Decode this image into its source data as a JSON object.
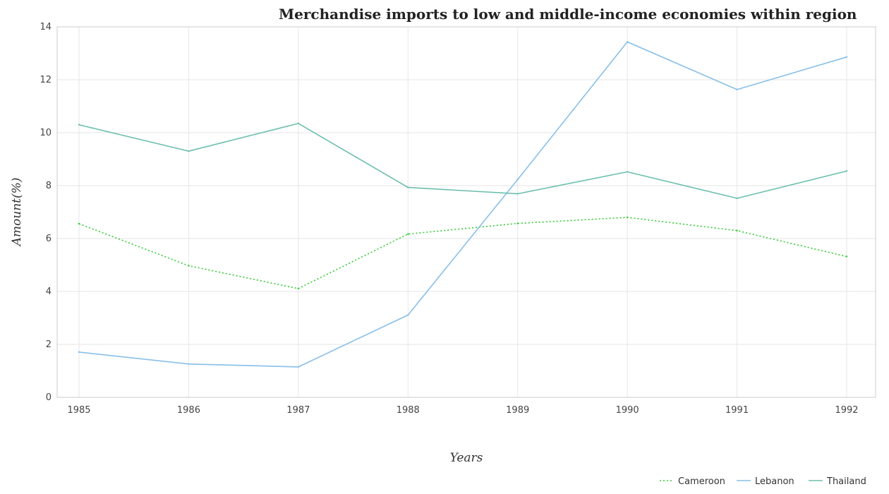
{
  "chart_data": {
    "type": "line",
    "title": "Merchandise imports to low and middle-income economies within region",
    "xlabel": "Years",
    "ylabel": "Amount(%)",
    "categories": [
      "1985",
      "1986",
      "1987",
      "1988",
      "1989",
      "1990",
      "1991",
      "1992"
    ],
    "ylim": [
      0,
      14
    ],
    "yticks": [
      0,
      2,
      4,
      6,
      8,
      10,
      12,
      14
    ],
    "grid": true,
    "legend_position": "bottom-right",
    "series": [
      {
        "name": "Cameroon",
        "color": "#33cc33",
        "dash": "2,3",
        "values": [
          6.56,
          4.97,
          4.11,
          6.17,
          6.57,
          6.8,
          6.3,
          5.32
        ]
      },
      {
        "name": "Lebanon",
        "color": "#87bfe8",
        "dash": "",
        "values": [
          1.71,
          1.26,
          1.15,
          3.11,
          8.23,
          13.43,
          11.63,
          12.86
        ]
      },
      {
        "name": "Thailand",
        "color": "#6dbfae",
        "dash": "",
        "values": [
          10.3,
          9.3,
          10.35,
          7.93,
          7.69,
          8.52,
          7.52,
          8.55
        ]
      }
    ]
  }
}
